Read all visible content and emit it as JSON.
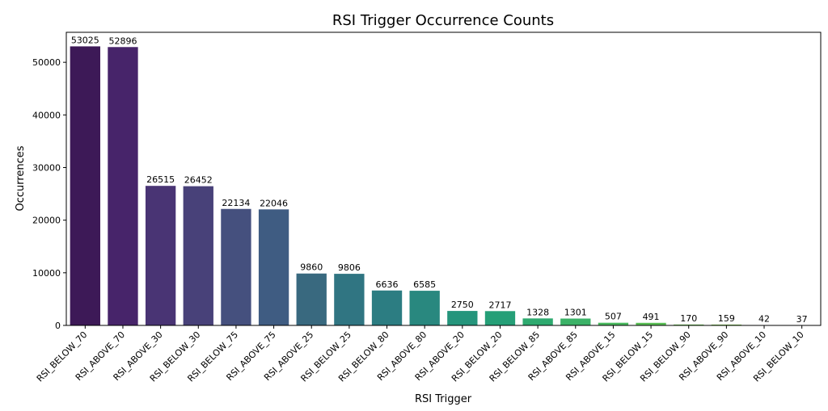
{
  "chart_data": {
    "type": "bar",
    "title": "RSI Trigger Occurrence Counts",
    "xlabel": "RSI Trigger",
    "ylabel": "Occurrences",
    "ylim": [
      0,
      55700
    ],
    "yticks": [
      0,
      10000,
      20000,
      30000,
      40000,
      50000
    ],
    "grid": false,
    "legend": "none",
    "palette": "viridis",
    "categories": [
      "RSI_BELOW_70",
      "RSI_ABOVE_70",
      "RSI_ABOVE_30",
      "RSI_BELOW_30",
      "RSI_BELOW_75",
      "RSI_ABOVE_75",
      "RSI_ABOVE_25",
      "RSI_BELOW_25",
      "RSI_BELOW_80",
      "RSI_ABOVE_80",
      "RSI_ABOVE_20",
      "RSI_BELOW_20",
      "RSI_BELOW_85",
      "RSI_ABOVE_85",
      "RSI_ABOVE_15",
      "RSI_BELOW_15",
      "RSI_BELOW_90",
      "RSI_ABOVE_90",
      "RSI_ABOVE_10",
      "RSI_BELOW_10"
    ],
    "values": [
      53025,
      52896,
      26515,
      26452,
      22134,
      22046,
      9860,
      9806,
      6636,
      6585,
      2750,
      2717,
      1328,
      1301,
      507,
      491,
      170,
      159,
      42,
      37
    ],
    "colors": [
      "#3d1957",
      "#47246a",
      "#493474",
      "#484179",
      "#45507e",
      "#3f5c82",
      "#39697f",
      "#307582",
      "#2c7d82",
      "#29887f",
      "#25957c",
      "#259f77",
      "#2eaa6f",
      "#3bb267",
      "#4ab95e",
      "#5abe55",
      "#6ac24f",
      "#7ac64a",
      "#88c944",
      "#96cd3d"
    ]
  }
}
